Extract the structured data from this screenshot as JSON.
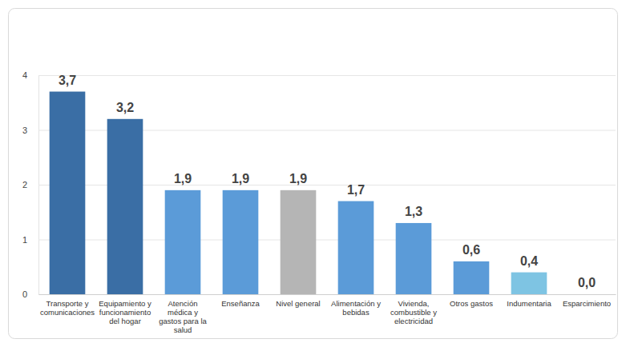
{
  "chart_data": {
    "type": "bar",
    "categories": [
      "Transporte y comunicaciones",
      "Equipamiento y funcionamiento del hogar",
      "Atención médica y gastos para la salud",
      "Enseñanza",
      "Nivel general",
      "Alimentación y bebidas",
      "Vivienda, combustible y electricidad",
      "Otros gastos",
      "Indumentaria",
      "Esparcimiento"
    ],
    "values": [
      3.7,
      3.2,
      1.9,
      1.9,
      1.9,
      1.7,
      1.3,
      0.6,
      0.4,
      0.0
    ],
    "value_labels": [
      "3,7",
      "3,2",
      "1,9",
      "1,9",
      "1,9",
      "1,7",
      "1,3",
      "0,6",
      "0,4",
      "0,0"
    ],
    "colors": [
      "#3a6ea5",
      "#3a6ea5",
      "#5b9bd8",
      "#5b9bd8",
      "#b5b5b5",
      "#5b9bd8",
      "#5b9bd8",
      "#5b9bd8",
      "#7ec4e3",
      "#5b9bd8"
    ],
    "ylim": [
      0,
      4
    ],
    "yticks": [
      0,
      1,
      2,
      3,
      4
    ],
    "grid": true,
    "data_labels": true
  }
}
